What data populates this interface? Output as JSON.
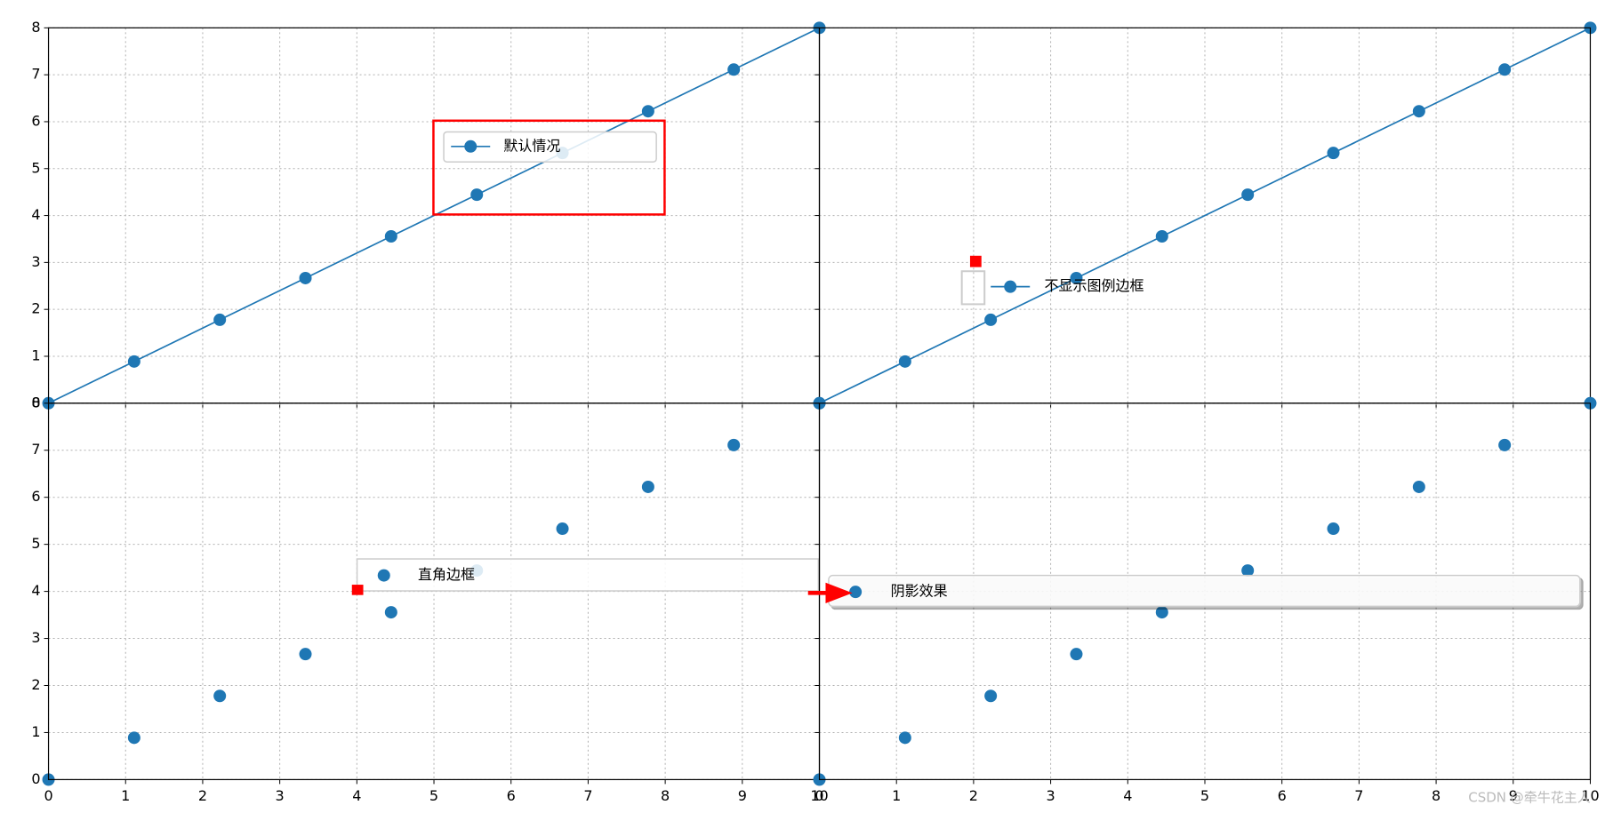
{
  "chart_data": [
    {
      "type": "line",
      "x": [
        0,
        1.111,
        2.222,
        3.333,
        4.444,
        5.556,
        6.667,
        7.778,
        8.889,
        10
      ],
      "series": [
        {
          "name": "默认情况",
          "color": "#1f77b4",
          "values": [
            0,
            0.889,
            1.778,
            2.667,
            3.556,
            4.444,
            5.333,
            6.222,
            7.111,
            8
          ]
        }
      ],
      "xlim": [
        0,
        10
      ],
      "ylim": [
        0,
        8
      ],
      "xticks": [
        0,
        1,
        2,
        3,
        4,
        5,
        6,
        7,
        8,
        9,
        10
      ],
      "yticks": [
        0,
        1,
        2,
        3,
        4,
        5,
        6,
        7,
        8
      ],
      "grid": true,
      "legend_frame": true
    },
    {
      "type": "line",
      "x": [
        0,
        1.111,
        2.222,
        3.333,
        4.444,
        5.556,
        6.667,
        7.778,
        8.889,
        10
      ],
      "series": [
        {
          "name": "不显示图例边框",
          "color": "#1f77b4",
          "values": [
            0,
            0.889,
            1.778,
            2.667,
            3.556,
            4.444,
            5.333,
            6.222,
            7.111,
            8
          ]
        }
      ],
      "xlim": [
        0,
        10
      ],
      "ylim": [
        0,
        8
      ],
      "xticks": [
        0,
        1,
        2,
        3,
        4,
        5,
        6,
        7,
        8,
        9,
        10
      ],
      "yticks": [
        0,
        1,
        2,
        3,
        4,
        5,
        6,
        7,
        8
      ],
      "grid": true,
      "legend_frame": false
    },
    {
      "type": "scatter",
      "x": [
        0,
        1.111,
        2.222,
        3.333,
        4.444,
        5.556,
        6.667,
        7.778,
        8.889,
        10
      ],
      "series": [
        {
          "name": "直角边框",
          "color": "#1f77b4",
          "values": [
            0,
            0.889,
            1.778,
            2.667,
            3.556,
            4.444,
            5.333,
            6.222,
            7.111,
            8
          ]
        }
      ],
      "xlim": [
        0,
        10
      ],
      "ylim": [
        0,
        8
      ],
      "xticks": [
        0,
        1,
        2,
        3,
        4,
        5,
        6,
        7,
        8,
        9,
        10
      ],
      "yticks": [
        0,
        1,
        2,
        3,
        4,
        5,
        6,
        7,
        8
      ],
      "grid": true,
      "legend_frame": true
    },
    {
      "type": "scatter",
      "x": [
        0,
        1.111,
        2.222,
        3.333,
        4.444,
        5.556,
        6.667,
        7.778,
        8.889,
        10
      ],
      "series": [
        {
          "name": "阴影效果",
          "color": "#1f77b4",
          "values": [
            0,
            0.889,
            1.778,
            2.667,
            3.556,
            4.444,
            5.333,
            6.222,
            7.111,
            8
          ]
        }
      ],
      "xlim": [
        0,
        10
      ],
      "ylim": [
        0,
        8
      ],
      "xticks": [
        0,
        1,
        2,
        3,
        4,
        5,
        6,
        7,
        8,
        9,
        10
      ],
      "yticks": [
        0,
        1,
        2,
        3,
        4,
        5,
        6,
        7,
        8
      ],
      "grid": true,
      "legend_frame": true,
      "legend_shadow": true
    }
  ],
  "watermark": "CSDN @牵牛花主人"
}
